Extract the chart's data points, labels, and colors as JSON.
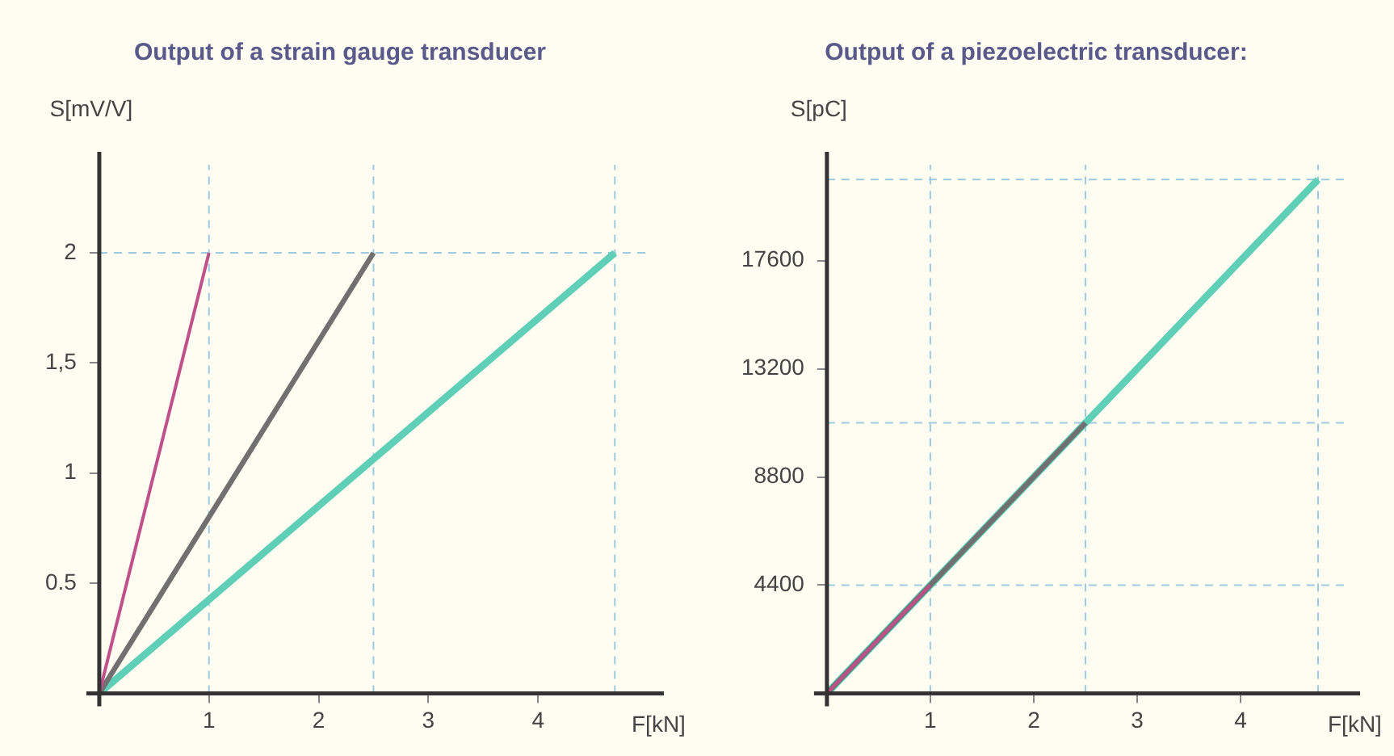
{
  "chart_data": [
    {
      "type": "line",
      "title": "Output of a strain gauge transducer",
      "xlabel": "F[kN]",
      "ylabel": "S[mV/V]",
      "marker": "none",
      "line_style": "solid",
      "xlim": [
        0,
        5
      ],
      "xticks": [
        1,
        2,
        3,
        4
      ],
      "ylim": [
        0,
        2.4
      ],
      "yticks": [
        0.5,
        1,
        {
          "value": 1.5,
          "label": "1,5"
        },
        2
      ],
      "series": [
        {
          "color": "#5fcfb8",
          "x": [
            0,
            4.7
          ],
          "values": [
            0,
            2
          ]
        },
        {
          "color": "#707070",
          "x": [
            0,
            2.5
          ],
          "values": [
            0,
            2
          ]
        },
        {
          "color": "#c0508a",
          "x": [
            0,
            1
          ],
          "values": [
            0,
            2
          ]
        }
      ],
      "ref_lines": [
        {
          "axis": "x",
          "value": 1,
          "color": "#9ccbe0",
          "line_style": "dashed"
        },
        {
          "axis": "x",
          "value": 2.5,
          "color": "#9ccbe0",
          "line_style": "dashed"
        },
        {
          "axis": "x",
          "value": 4.7,
          "color": "#9ccbe0",
          "line_style": "dashed"
        },
        {
          "axis": "y",
          "value": 2,
          "color": "#9ccbe0",
          "line_style": "dashed"
        }
      ]
    },
    {
      "type": "line",
      "title": "Output of a piezoelectric transducer:",
      "xlabel": "F[kN]",
      "ylabel": "S[pC]",
      "marker": "none",
      "line_style": "solid",
      "xlim": [
        0,
        5
      ],
      "xticks": [
        1,
        2,
        3,
        4
      ],
      "ylim": [
        0,
        21500
      ],
      "yticks": [
        4400,
        8800,
        13200,
        17600
      ],
      "series": [
        {
          "color": "#5fcfb8",
          "x": [
            0,
            4.75
          ],
          "values": [
            0,
            20900
          ]
        },
        {
          "color": "#707070",
          "x": [
            0,
            2.5
          ],
          "values": [
            0,
            11000
          ]
        },
        {
          "color": "#c0508a",
          "x": [
            0,
            1
          ],
          "values": [
            0,
            4400
          ]
        }
      ],
      "ref_lines": [
        {
          "axis": "x",
          "value": 1,
          "color": "#9ccbe0",
          "line_style": "dashed"
        },
        {
          "axis": "x",
          "value": 2.5,
          "color": "#9ccbe0",
          "line_style": "dashed"
        },
        {
          "axis": "x",
          "value": 4.75,
          "color": "#9ccbe0",
          "line_style": "dashed"
        },
        {
          "axis": "y",
          "value": 4400,
          "color": "#9ccbe0",
          "line_style": "dashed"
        },
        {
          "axis": "y",
          "value": 11000,
          "color": "#9ccbe0",
          "line_style": "dashed"
        },
        {
          "axis": "y",
          "value": 20900,
          "color": "#9ccbe0",
          "line_style": "dashed"
        }
      ]
    }
  ]
}
